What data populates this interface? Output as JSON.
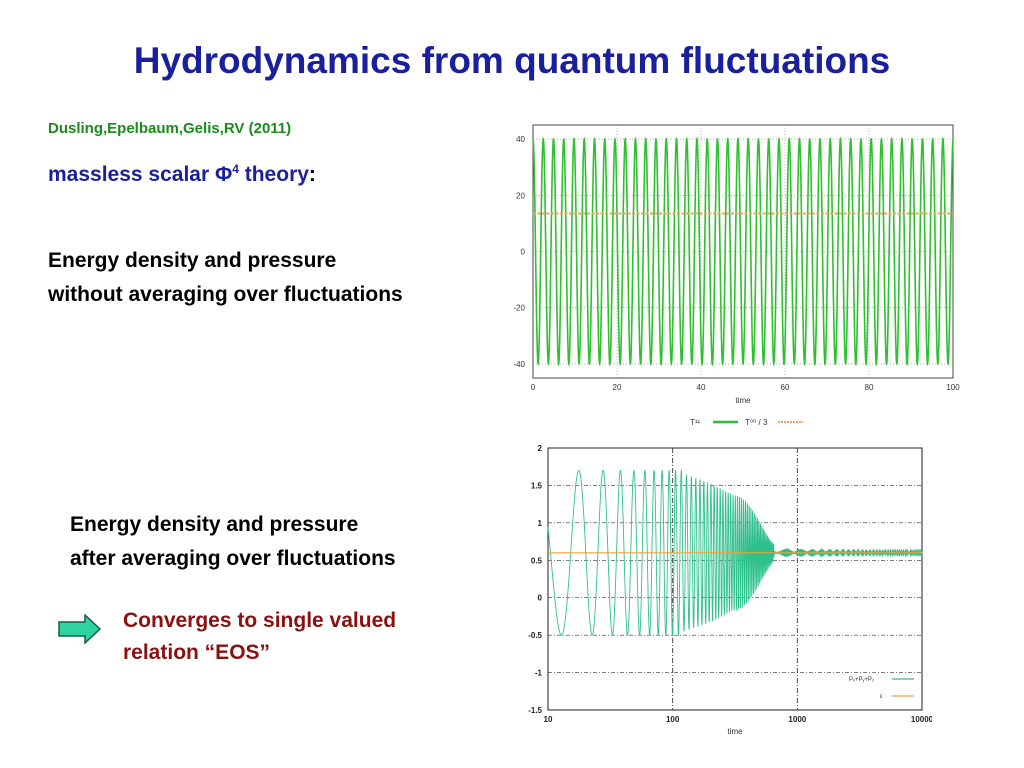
{
  "slide": {
    "title": "Hydrodynamics from quantum fluctuations",
    "reference": "Dusling,Epelbaum,Gelis,RV (2011)",
    "theory_text": "massless scalar Φ",
    "theory_sup": "4",
    "theory_suffix": " theory",
    "theory_colon": ":",
    "text1_line1": "Energy density and pressure",
    "text1_line2": "without averaging over fluctuations",
    "text2_line1": "Energy density and pressure",
    "text2_line2": "after averaging over fluctuations",
    "conclusion_line1": "Converges to single valued",
    "conclusion_line2": "relation “EOS”",
    "arrow_icon": "right-arrow-icon"
  },
  "colors": {
    "title": "#1a1f9c",
    "reference": "#1a8c1a",
    "conclusion": "#8b1010",
    "series_green": "#2ec02e",
    "series_orange": "#f0a060",
    "arrow_fill": "#2ed3a0"
  },
  "chart_data": [
    {
      "type": "line",
      "xlabel": "time",
      "ylabel": "",
      "xlim": [
        0,
        100
      ],
      "ylim": [
        -45,
        45
      ],
      "xticks": [
        0,
        20,
        40,
        60,
        80,
        100
      ],
      "yticks": [
        -40,
        -20,
        0,
        20,
        40
      ],
      "grid": true,
      "legend_position": "bottom",
      "series": [
        {
          "name": "T¹¹",
          "kind": "oscillation",
          "amplitude": 40,
          "period": 2.44,
          "color": "#2ec02e"
        },
        {
          "name": "T⁰⁰ / 3",
          "kind": "constant",
          "value": 13.5,
          "color": "#f0a060"
        }
      ]
    },
    {
      "type": "line",
      "xlabel": "time",
      "ylabel": "",
      "xscale": "log",
      "xlim": [
        10,
        10000
      ],
      "ylim": [
        -1.5,
        2
      ],
      "xticks": [
        10,
        100,
        1000,
        10000
      ],
      "yticks": [
        -1.5,
        -1,
        -0.5,
        0,
        0.5,
        1,
        1.5,
        2
      ],
      "grid": true,
      "legend_position": "bottom-right",
      "series": [
        {
          "name": "Pₓ+Pᵧ+P₂",
          "kind": "damped",
          "center": 0.6,
          "initial_amplitude": 1.1,
          "color": "#2ec08a"
        },
        {
          "name": "ε",
          "kind": "constant",
          "value": 0.6,
          "color": "#f0a040"
        }
      ]
    }
  ]
}
